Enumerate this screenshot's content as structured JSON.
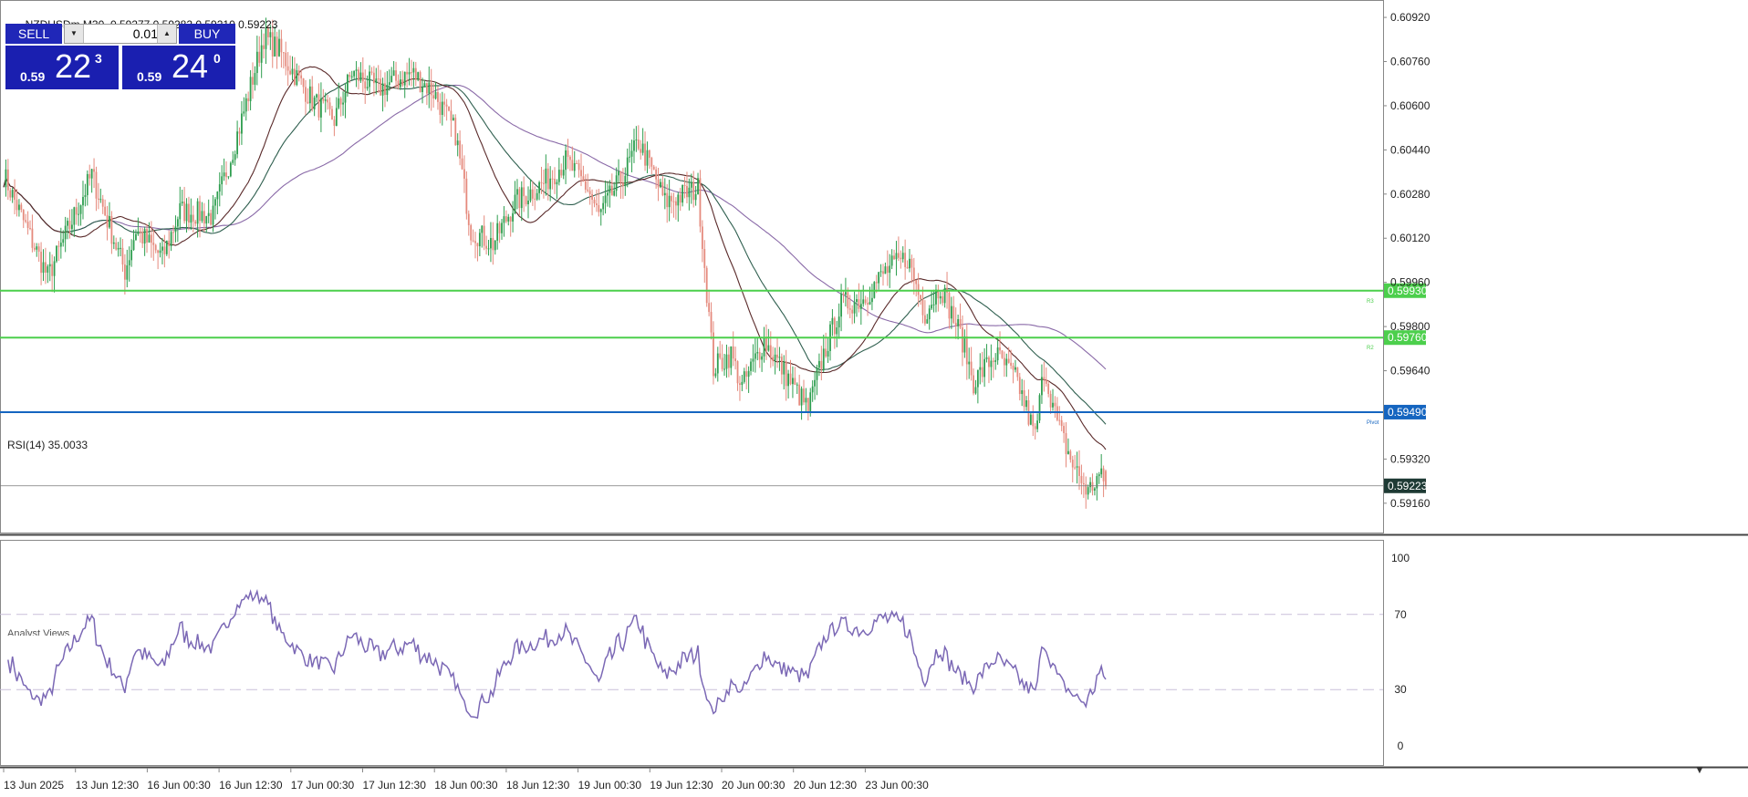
{
  "header": {
    "symbol_tf": "NZDUSDm,M30",
    "ohlc": "0.59277 0.59282 0.59210 0.59223"
  },
  "trade_panel": {
    "sell_label": "SELL",
    "buy_label": "BUY",
    "lot_value": "0.01",
    "sell_small": "0.59",
    "sell_big": "22",
    "sell_sup": "3",
    "buy_small": "0.59",
    "buy_big": "24",
    "buy_sup": "0"
  },
  "price_axis": {
    "ticks": [
      "0.60920",
      "0.60760",
      "0.60600",
      "0.60440",
      "0.60280",
      "0.60120",
      "0.59960",
      "0.59800",
      "0.59640",
      "0.59320",
      "0.59160"
    ],
    "tick_values": [
      0.6092,
      0.6076,
      0.606,
      0.6044,
      0.6028,
      0.6012,
      0.5996,
      0.598,
      0.5964,
      0.5932,
      0.5916
    ]
  },
  "levels": [
    {
      "value": 0.5993,
      "label": "0.59930",
      "tag": "R3",
      "color": "#4ccf4c"
    },
    {
      "value": 0.5976,
      "label": "0.59760",
      "tag": "R2",
      "color": "#4ccf4c"
    },
    {
      "value": 0.5949,
      "label": "0.59490",
      "tag": "Pivot",
      "color": "#1565c0"
    }
  ],
  "current_price": {
    "value": 0.59223,
    "label": "0.59223"
  },
  "rsi": {
    "label": "RSI(14) 35.0033",
    "ticks": [
      "100",
      "70",
      "30",
      "0"
    ],
    "tick_values": [
      100,
      70,
      30,
      0
    ],
    "overbought": 70,
    "oversold": 30
  },
  "time_axis": [
    "13 Jun 2025",
    "13 Jun 12:30",
    "16 Jun 00:30",
    "16 Jun 12:30",
    "17 Jun 00:30",
    "17 Jun 12:30",
    "18 Jun 00:30",
    "18 Jun 12:30",
    "19 Jun 00:30",
    "19 Jun 12:30",
    "20 Jun 00:30",
    "20 Jun 12:30",
    "23 Jun 00:30"
  ],
  "bottom_tab": "Analyst Views",
  "colors": {
    "bull": "#2e9e4f",
    "bear": "#e58a7d",
    "rsi": "#7b68b5",
    "ma_fast": "#5a2a2a",
    "ma_mid": "#2f5f4f",
    "ma_slow": "#8a6aa8"
  },
  "chart_data": {
    "type": "candlestick",
    "symbol": "NZDUSDm",
    "timeframe": "M30",
    "ylim": [
      0.591,
      0.6095
    ],
    "anchors": [
      [
        0,
        0.6035
      ],
      [
        8,
        0.602
      ],
      [
        20,
        0.5998
      ],
      [
        40,
        0.6035
      ],
      [
        55,
        0.6
      ],
      [
        60,
        0.6015
      ],
      [
        72,
        0.6005
      ],
      [
        80,
        0.6022
      ],
      [
        95,
        0.602
      ],
      [
        108,
        0.6055
      ],
      [
        118,
        0.6085
      ],
      [
        125,
        0.608
      ],
      [
        140,
        0.6062
      ],
      [
        150,
        0.6055
      ],
      [
        158,
        0.6072
      ],
      [
        170,
        0.6066
      ],
      [
        185,
        0.6072
      ],
      [
        195,
        0.6065
      ],
      [
        205,
        0.605
      ],
      [
        212,
        0.6015
      ],
      [
        222,
        0.601
      ],
      [
        232,
        0.6025
      ],
      [
        245,
        0.6032
      ],
      [
        255,
        0.604
      ],
      [
        265,
        0.603
      ],
      [
        270,
        0.602
      ],
      [
        282,
        0.6036
      ],
      [
        288,
        0.6047
      ],
      [
        295,
        0.6035
      ],
      [
        300,
        0.6025
      ],
      [
        315,
        0.603
      ],
      [
        322,
        0.5965
      ],
      [
        330,
        0.597
      ],
      [
        335,
        0.5958
      ],
      [
        345,
        0.5975
      ],
      [
        357,
        0.596
      ],
      [
        365,
        0.595
      ],
      [
        372,
        0.597
      ],
      [
        380,
        0.5988
      ],
      [
        390,
        0.599
      ],
      [
        400,
        0.6
      ],
      [
        410,
        0.6005
      ],
      [
        418,
        0.5985
      ],
      [
        425,
        0.5995
      ],
      [
        435,
        0.5975
      ],
      [
        440,
        0.596
      ],
      [
        450,
        0.597
      ],
      [
        460,
        0.596
      ],
      [
        468,
        0.594
      ],
      [
        472,
        0.5965
      ],
      [
        478,
        0.5945
      ],
      [
        485,
        0.593
      ],
      [
        492,
        0.592
      ],
      [
        497,
        0.5926
      ],
      [
        500,
        0.5922
      ]
    ],
    "last_bar": {
      "open": 0.59277,
      "high": 0.59282,
      "low": 0.5921,
      "close": 0.59223
    }
  }
}
